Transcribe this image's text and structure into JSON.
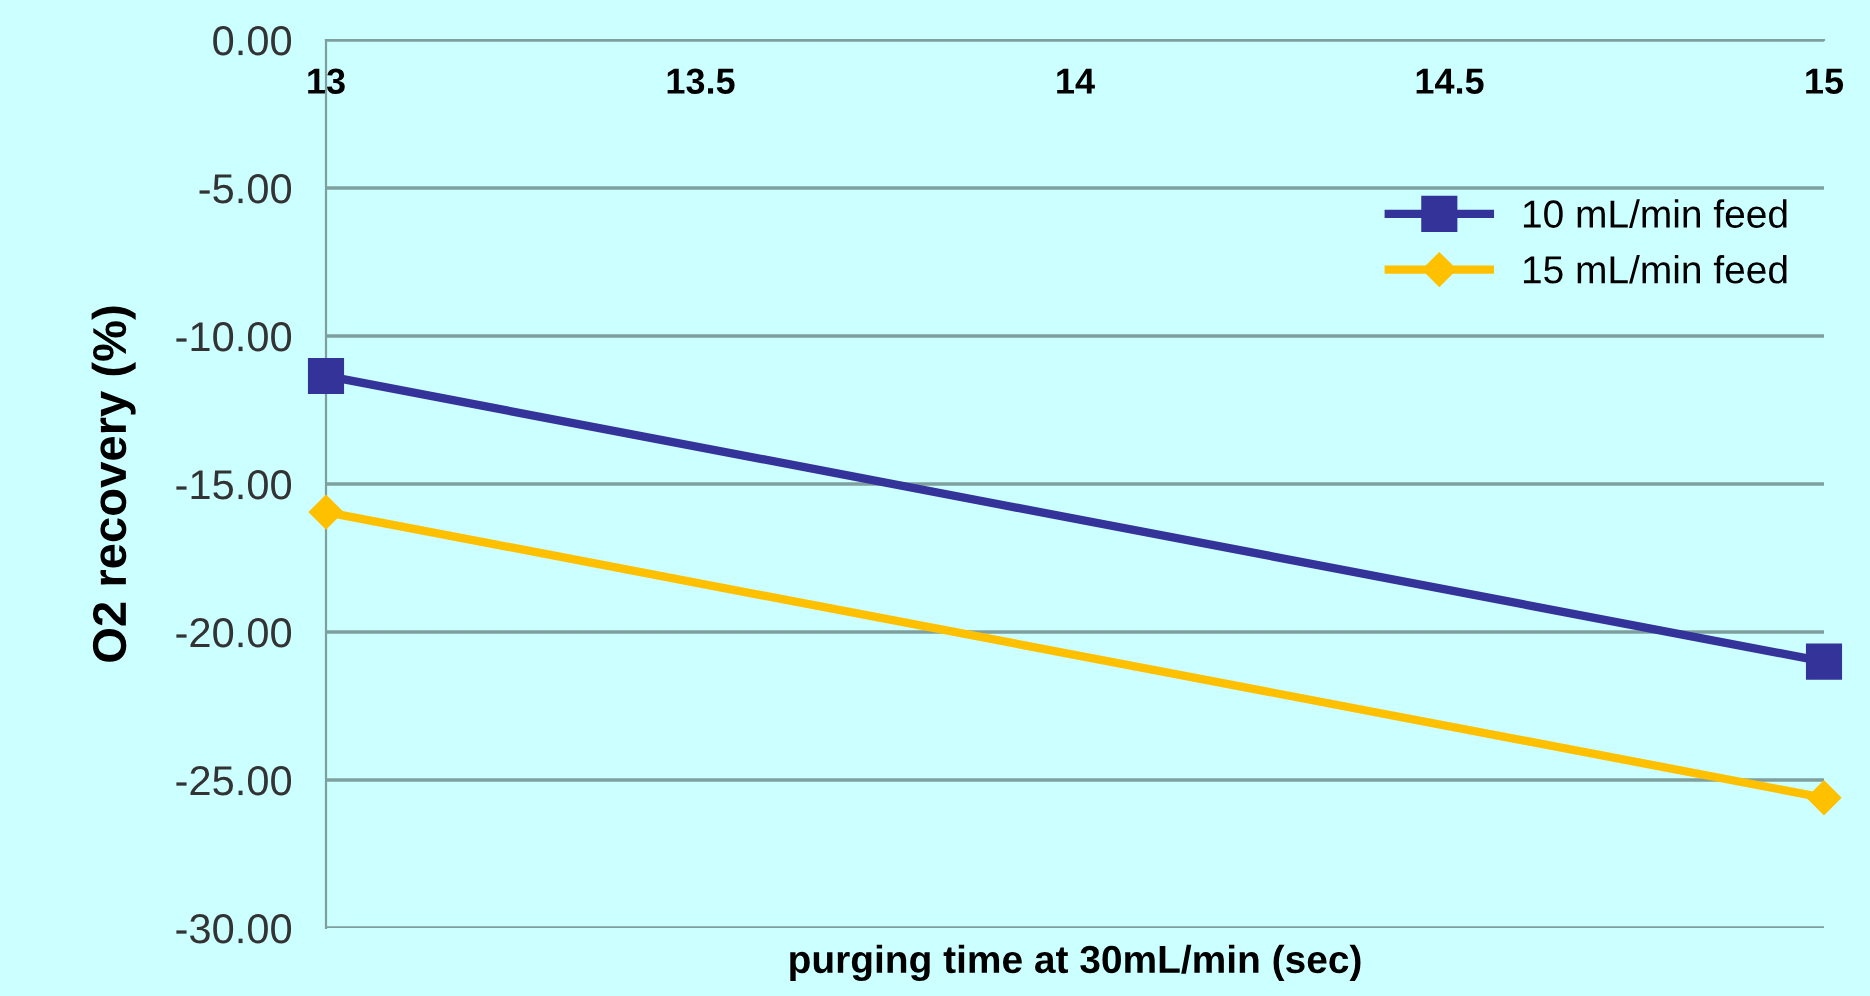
{
  "chart_data": {
    "type": "line",
    "xlabel": "purging time at 30mL/min (sec)",
    "ylabel": "O2 recovery (%)",
    "x": [
      13,
      15
    ],
    "series": [
      {
        "name": "10 mL/min feed",
        "color": "#333399",
        "marker": "square",
        "values": [
          -11.35,
          -21.0
        ]
      },
      {
        "name": "15 mL/min feed",
        "color": "#ffc000",
        "marker": "diamond",
        "values": [
          -15.95,
          -25.6
        ]
      }
    ],
    "xlim": [
      13,
      15
    ],
    "xticks": [
      13,
      13.5,
      14,
      14.5,
      15
    ],
    "ylim": [
      -30,
      0
    ],
    "yticks": [
      {
        "value": 0,
        "label": "0.00"
      },
      {
        "value": -5,
        "label": "-5.00"
      },
      {
        "value": -10,
        "label": "-10.00"
      },
      {
        "value": -15,
        "label": "-15.00"
      },
      {
        "value": -20,
        "label": "-20.00"
      },
      {
        "value": -25,
        "label": "-25.00"
      },
      {
        "value": -30,
        "label": "-30.00"
      }
    ],
    "grid": "y",
    "legend": "top right",
    "line_style": "solid"
  }
}
